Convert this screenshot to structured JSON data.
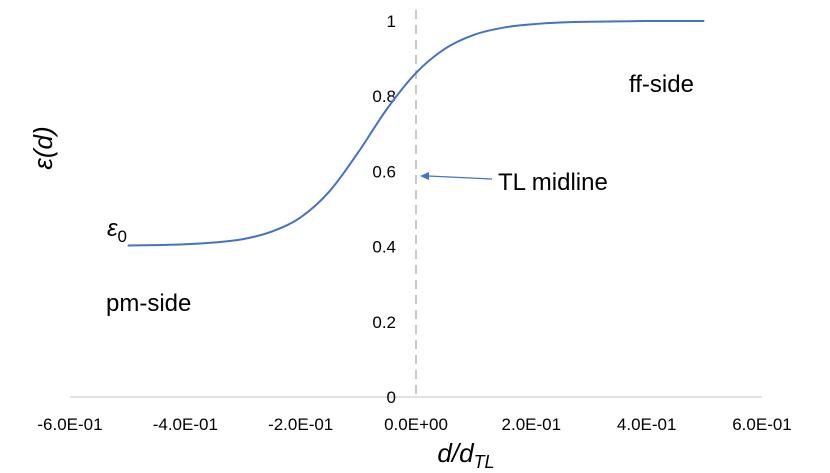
{
  "chart_data": {
    "type": "line",
    "xlabel": "d/d_TL",
    "ylabel": "ε(d)",
    "xlim": [
      -0.6,
      0.6
    ],
    "ylim": [
      0,
      1
    ],
    "x_ticks": [
      "-6.0E-01",
      "-4.0E-01",
      "-2.0E-01",
      "0.0E+00",
      "2.0E-01",
      "4.0E-01",
      "6.0E-01"
    ],
    "y_ticks": [
      "0",
      "0.2",
      "0.4",
      "0.6",
      "0.8",
      "1"
    ],
    "grid": false,
    "series": [
      {
        "color": "#4472c4",
        "x": [
          -0.5,
          -0.45,
          -0.4,
          -0.35,
          -0.3,
          -0.25,
          -0.2,
          -0.15,
          -0.1,
          -0.05,
          0.0,
          0.05,
          0.1,
          0.15,
          0.2,
          0.25,
          0.3,
          0.35,
          0.4,
          0.45,
          0.5
        ],
        "y": [
          0.403,
          0.404,
          0.406,
          0.411,
          0.42,
          0.44,
          0.478,
          0.547,
          0.651,
          0.767,
          0.862,
          0.926,
          0.963,
          0.982,
          0.991,
          0.996,
          0.998,
          0.999,
          1.0,
          1.0,
          1.0
        ]
      }
    ],
    "midline_x": 0.0,
    "annotations": {
      "epsilon0": "ε",
      "epsilon0_sub": "0",
      "ff_side": "ff-side",
      "pm_side": "pm-side",
      "tl_midline": "TL midline"
    }
  }
}
